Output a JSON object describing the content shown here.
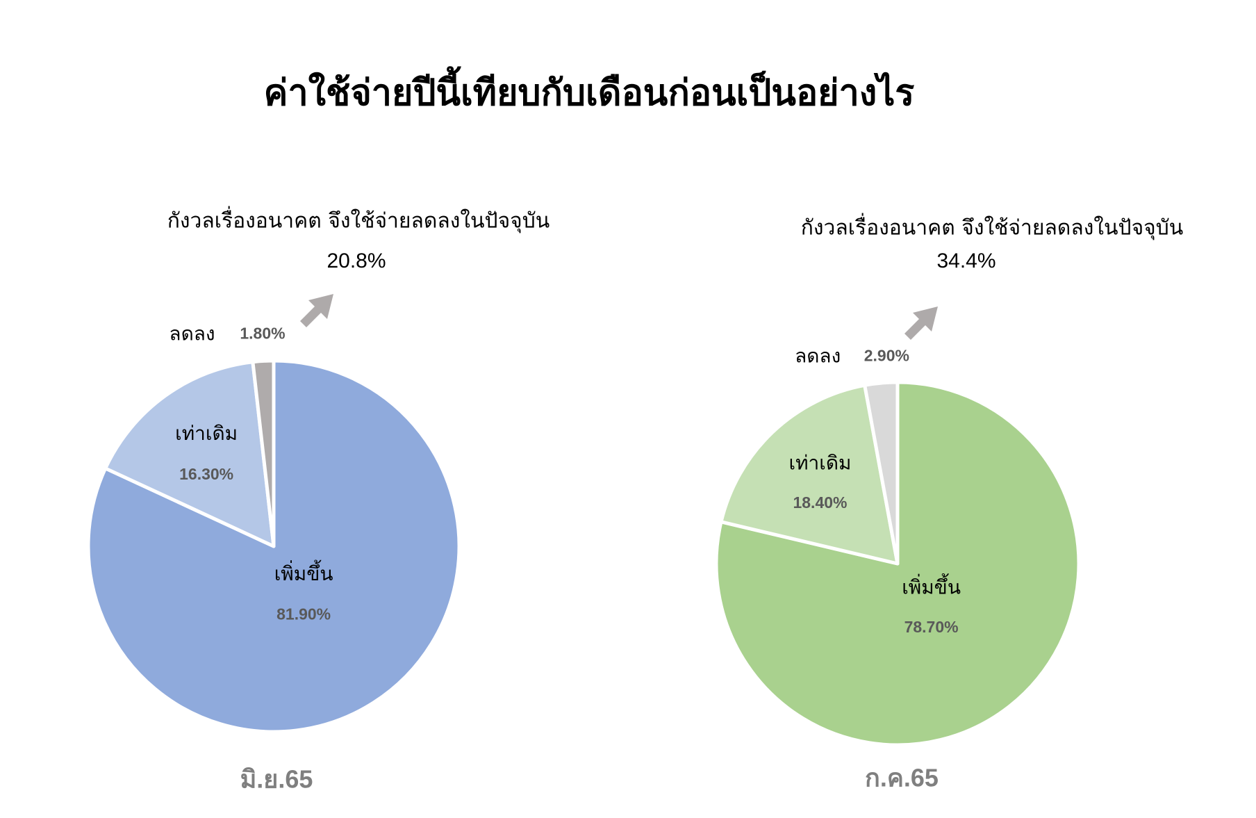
{
  "title": "ค่าใช้จ่ายปีนี้เทียบกับเดือนก่อนเป็นอย่างไร",
  "chart_data": [
    {
      "type": "pie",
      "title": "มิ.ย.65",
      "categories": [
        "เพิ่มขึ้น",
        "เท่าเดิม",
        "ลดลง"
      ],
      "values": [
        81.9,
        16.3,
        1.8
      ],
      "value_labels": [
        "81.90%",
        "16.30%",
        "1.80%"
      ],
      "colors": [
        "#8faadc",
        "#b4c7e7",
        "#afabab"
      ],
      "annotation": {
        "text": "กังวลเรื่องอนาคต จึงใช้จ่ายลดลงในปัจจุบัน",
        "value_label": "20.8%"
      }
    },
    {
      "type": "pie",
      "title": "ก.ค.65",
      "categories": [
        "เพิ่มขึ้น",
        "เท่าเดิม",
        "ลดลง"
      ],
      "values": [
        78.7,
        18.4,
        2.9
      ],
      "value_labels": [
        "78.70%",
        "18.40%",
        "2.90%"
      ],
      "colors": [
        "#a9d18e",
        "#c5e0b4",
        "#d9d9d9"
      ],
      "annotation": {
        "text": "กังวลเรื่องอนาคต จึงใช้จ่ายลดลงในปัจจุบัน",
        "value_label": "34.4%"
      }
    }
  ]
}
